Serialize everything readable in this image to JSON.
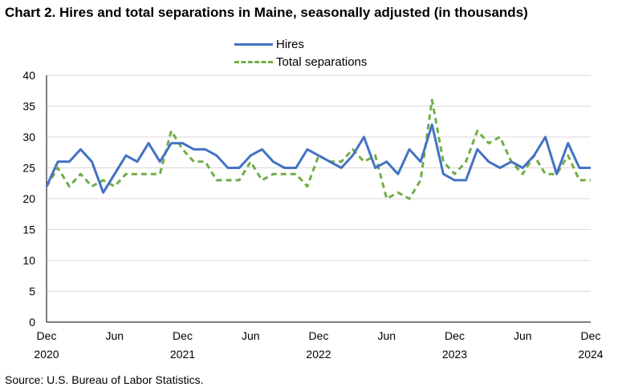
{
  "chart_data": {
    "type": "line",
    "title": "Chart 2. Hires and total separations in Maine, seasonally adjusted (in thousands)",
    "xlabel": "",
    "ylabel": "",
    "ylim": [
      0,
      40
    ],
    "yticks": [
      0,
      5,
      10,
      15,
      20,
      25,
      30,
      35,
      40
    ],
    "grid": true,
    "legend_placement": "top-center",
    "x": [
      "2020-12",
      "2021-01",
      "2021-02",
      "2021-03",
      "2021-04",
      "2021-05",
      "2021-06",
      "2021-07",
      "2021-08",
      "2021-09",
      "2021-10",
      "2021-11",
      "2021-12",
      "2022-01",
      "2022-02",
      "2022-03",
      "2022-04",
      "2022-05",
      "2022-06",
      "2022-07",
      "2022-08",
      "2022-09",
      "2022-10",
      "2022-11",
      "2022-12",
      "2023-01",
      "2023-02",
      "2023-03",
      "2023-04",
      "2023-05",
      "2023-06",
      "2023-07",
      "2023-08",
      "2023-09",
      "2023-10",
      "2023-11",
      "2023-12",
      "2024-01",
      "2024-02",
      "2024-03",
      "2024-04",
      "2024-05",
      "2024-06",
      "2024-07",
      "2024-08",
      "2024-09",
      "2024-10",
      "2024-11",
      "2024-12"
    ],
    "x_tick_labels": [
      {
        "index": 0,
        "month": "Dec",
        "year": "2020"
      },
      {
        "index": 6,
        "month": "Jun",
        "year": ""
      },
      {
        "index": 12,
        "month": "Dec",
        "year": "2021"
      },
      {
        "index": 18,
        "month": "Jun",
        "year": ""
      },
      {
        "index": 24,
        "month": "Dec",
        "year": "2022"
      },
      {
        "index": 30,
        "month": "Jun",
        "year": ""
      },
      {
        "index": 36,
        "month": "Dec",
        "year": "2023"
      },
      {
        "index": 42,
        "month": "Jun",
        "year": ""
      },
      {
        "index": 48,
        "month": "Dec",
        "year": "2024"
      }
    ],
    "series": [
      {
        "name": "Hires",
        "color": "#4472C4",
        "style": "solid",
        "values": [
          22,
          26,
          26,
          28,
          26,
          21,
          24,
          27,
          26,
          29,
          26,
          29,
          29,
          28,
          28,
          27,
          25,
          25,
          27,
          28,
          26,
          25,
          25,
          28,
          27,
          26,
          25,
          27,
          30,
          25,
          26,
          24,
          28,
          26,
          32,
          24,
          23,
          23,
          28,
          26,
          25,
          26,
          25,
          27,
          30,
          24,
          29,
          25,
          25
        ]
      },
      {
        "name": "Total separations",
        "color": "#70AD47",
        "style": "dashed",
        "values": [
          22,
          25,
          22,
          24,
          22,
          23,
          22,
          24,
          24,
          24,
          24,
          31,
          28,
          26,
          26,
          23,
          23,
          23,
          26,
          23,
          24,
          24,
          24,
          22,
          27,
          26,
          26,
          28,
          26,
          27,
          20,
          21,
          20,
          23,
          36,
          26,
          24,
          26,
          31,
          29,
          30,
          26,
          24,
          27,
          24,
          24,
          27,
          23,
          23
        ]
      }
    ]
  },
  "source": "Source: U.S. Bureau of Labor Statistics."
}
